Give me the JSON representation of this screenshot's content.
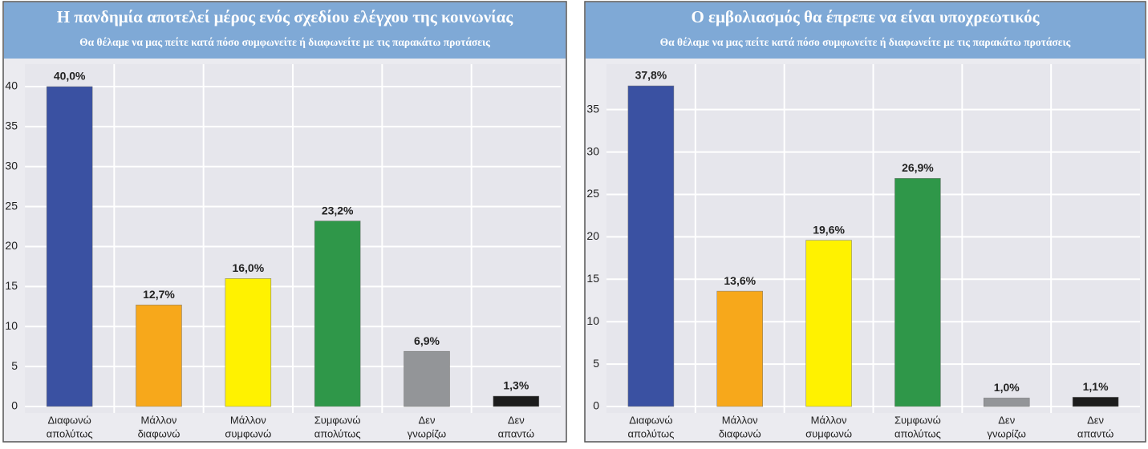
{
  "chart_data": [
    {
      "type": "bar",
      "title": "Η πανδημία αποτελεί μέρος ενός σχεδίου ελέγχου της κοινωνίας",
      "subtitle": "Θα θέλαμε να μας πείτε κατά πόσο συμφωνείτε ή διαφωνείτε με τις παρακάτω προτάσεις",
      "categories": [
        [
          "Διαφωνώ",
          "απολύτως"
        ],
        [
          "Μάλλον",
          "διαφωνώ"
        ],
        [
          "Μάλλον",
          "συμφωνώ"
        ],
        [
          "Συμφωνώ",
          "απολύτως"
        ],
        [
          "Δεν",
          "γνωρίζω"
        ],
        [
          "Δεν",
          "απαντώ"
        ]
      ],
      "values": [
        40.0,
        12.7,
        16.0,
        23.2,
        6.9,
        1.3
      ],
      "value_labels": [
        "40,0%",
        "12,7%",
        "16,0%",
        "23,2%",
        "6,9%",
        "1,3%"
      ],
      "colors": [
        "#3a51a2",
        "#f7a81b",
        "#fff200",
        "#2f9749",
        "#939598",
        "#1c1c1c"
      ],
      "ylim": [
        0,
        42
      ],
      "yticks": [
        0,
        5,
        10,
        15,
        20,
        25,
        30,
        35,
        40
      ],
      "grid": true
    },
    {
      "type": "bar",
      "title": "Ο εμβολιασμός θα έπρεπε να είναι υποχρεωτικός",
      "subtitle": "Θα θέλαμε να μας πείτε κατά πόσο συμφωνείτε ή διαφωνείτε με τις παρακάτω προτάσεις",
      "categories": [
        [
          "Διαφωνώ",
          "απολύτως"
        ],
        [
          "Μάλλον",
          "διαφωνώ"
        ],
        [
          "Μάλλον",
          "συμφωνώ"
        ],
        [
          "Συμφωνώ",
          "απολύτως"
        ],
        [
          "Δεν",
          "γνωρίζω"
        ],
        [
          "Δεν",
          "απαντώ"
        ]
      ],
      "values": [
        37.8,
        13.6,
        19.6,
        26.9,
        1.0,
        1.1
      ],
      "value_labels": [
        "37,8%",
        "13,6%",
        "19,6%",
        "26,9%",
        "1,0%",
        "1,1%"
      ],
      "colors": [
        "#3a51a2",
        "#f7a81b",
        "#fff200",
        "#2f9749",
        "#939598",
        "#1c1c1c"
      ],
      "ylim": [
        0,
        39.6
      ],
      "yticks": [
        0,
        5,
        10,
        15,
        20,
        25,
        30,
        35
      ],
      "grid": true
    }
  ]
}
